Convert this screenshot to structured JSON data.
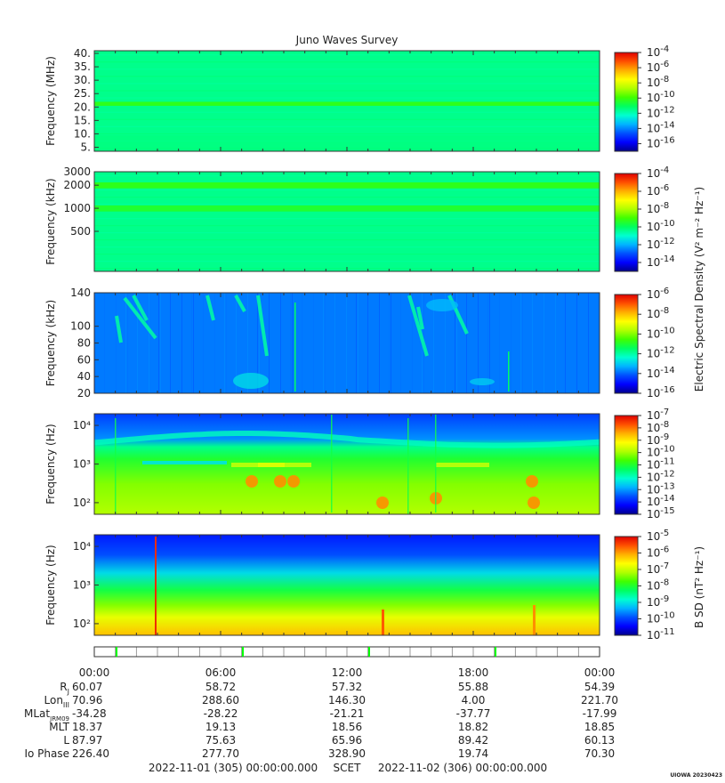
{
  "title": "Juno Waves Survey",
  "stamp": "UIOWA 20230423",
  "footer": {
    "start": "2022-11-01 (305) 00:00:00.000",
    "scet": "SCET",
    "end": "2022-11-02 (306) 00:00:00.000"
  },
  "side_labels": {
    "esd": "Electric Spectral Density (V² m⁻² Hz⁻¹)",
    "bsd": "B SD (nT² Hz⁻¹)"
  },
  "time_ticks": [
    "00:00",
    "06:00",
    "12:00",
    "18:00",
    "00:00"
  ],
  "ephemeris": {
    "labels": [
      "Rj",
      "LonIII",
      "MLatJRM09",
      "MLT",
      "L",
      "Io Phase"
    ],
    "rows": [
      [
        "60.07",
        "58.72",
        "57.32",
        "55.88",
        "54.39"
      ],
      [
        "70.96",
        "288.60",
        "146.30",
        "4.00",
        "221.70"
      ],
      [
        "-34.28",
        "-28.22",
        "-21.21",
        "-37.77",
        "-17.99"
      ],
      [
        "18.37",
        "19.13",
        "18.56",
        "18.82",
        "18.85"
      ],
      [
        "87.97",
        "75.63",
        "65.96",
        "89.42",
        "60.13"
      ],
      [
        "226.40",
        "277.70",
        "328.90",
        "19.74",
        "70.30"
      ]
    ]
  },
  "colors": {
    "colormap": [
      "#00008c",
      "#0000ff",
      "#0050ff",
      "#00b4ff",
      "#00ffd0",
      "#00ff60",
      "#40ff00",
      "#b0ff00",
      "#ffff00",
      "#ffb000",
      "#ff5000",
      "#e00000"
    ],
    "event_marker": "#00ff00"
  },
  "chart_data": [
    {
      "type": "heatmap",
      "title": "Juno Waves Survey",
      "ylabel": "Frequency (MHz)",
      "ylim": [
        3.5,
        41
      ],
      "y_scale": "linear",
      "y_ticks": [
        "5.",
        "10.",
        "15.",
        "20.",
        "25.",
        "30.",
        "35.",
        "40."
      ],
      "colorbar": {
        "ticks": [
          "10-4",
          "10-6",
          "10-8",
          "10-10",
          "10-12",
          "10-14",
          "10-16"
        ],
        "range_exp": [
          -17,
          -4
        ]
      },
      "background_level": 0.42,
      "bands": [
        {
          "y": 21.2,
          "width": 1.5,
          "level": 0.52
        }
      ]
    },
    {
      "type": "heatmap",
      "ylabel": "Frequency (kHz)",
      "ylim": [
        150,
        3000
      ],
      "y_scale": "log",
      "y_ticks": [
        "3000",
        "2000",
        "1000",
        "500"
      ],
      "colorbar": {
        "ticks": [
          "10-4",
          "10-6",
          "10-8",
          "10-10",
          "10-12",
          "10-14"
        ],
        "range_exp": [
          -15,
          -4
        ]
      },
      "background_level": 0.42,
      "bands": [
        {
          "y": 2000,
          "width": 0.03,
          "level": 0.52
        },
        {
          "y": 1000,
          "width": 0.03,
          "level": 0.5
        }
      ]
    },
    {
      "type": "heatmap",
      "ylabel": "Frequency (kHz)",
      "ylim": [
        20,
        140
      ],
      "y_scale": "linear",
      "y_ticks": [
        "140",
        "100",
        "80",
        "60",
        "40",
        "20"
      ],
      "colorbar": {
        "ticks": [
          "10-6",
          "10-8",
          "10-10",
          "10-12",
          "10-14",
          "10-16"
        ],
        "range_exp": [
          -16,
          -6
        ]
      },
      "background_level": 0.2
    },
    {
      "type": "heatmap",
      "ylabel": "Frequency (Hz)",
      "ylim": [
        50,
        20000
      ],
      "y_scale": "log",
      "y_ticks": [
        "10⁴",
        "10³",
        "10²"
      ],
      "colorbar": {
        "ticks": [
          "10-7",
          "10-8",
          "10-9",
          "10-10",
          "10-11",
          "10-12",
          "10-13",
          "10-14",
          "10-15"
        ],
        "range_exp": [
          -15,
          -7
        ]
      },
      "background_level": 0.55
    },
    {
      "type": "heatmap",
      "ylabel": "Frequency (Hz)",
      "ylim": [
        50,
        20000
      ],
      "y_scale": "log",
      "y_ticks": [
        "10⁴",
        "10³",
        "10²"
      ],
      "colorbar": {
        "ticks": [
          "10-5",
          "10-6",
          "10-7",
          "10-8",
          "10-9",
          "10-10",
          "10-11"
        ],
        "range_exp": [
          -11,
          -5
        ]
      },
      "background_level": 0.55
    }
  ]
}
